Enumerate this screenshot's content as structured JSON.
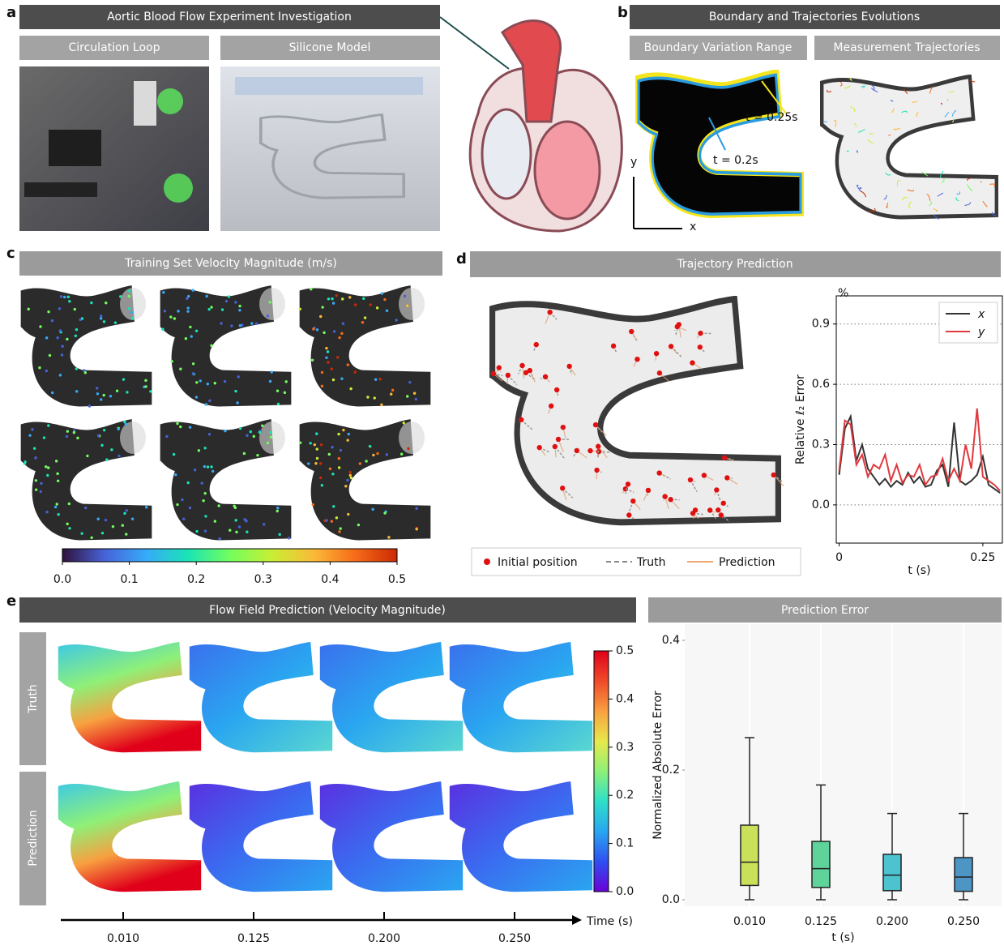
{
  "panels": {
    "a": {
      "label": "a",
      "title": "Aortic Blood Flow Experiment Investigation",
      "subtitles": [
        "Circulation Loop",
        "Silicone Model"
      ]
    },
    "b": {
      "label": "b",
      "title": "Boundary and Trajectories Evolutions",
      "subtitles": [
        "Boundary Variation Range",
        "Measurement Trajectories"
      ],
      "annotations": [
        "t = 0.25s",
        "t = 0.2s"
      ],
      "axis_labels": [
        "y",
        "x"
      ]
    },
    "c": {
      "label": "c",
      "title": "Training Set Velocity Magnitude (m/s)"
    },
    "d": {
      "label": "d",
      "title": "Trajectory Prediction",
      "legend": [
        "Initial position",
        "Truth",
        "Prediction"
      ]
    },
    "e": {
      "label": "e",
      "title": "Flow Field Prediction (Velocity Magnitude)",
      "rows": [
        "Truth",
        "Prediction"
      ],
      "time_axis_label": "Time  (s)",
      "times": [
        "0.010",
        "0.125",
        "0.200",
        "0.250"
      ],
      "error_title": "Prediction Error"
    }
  },
  "chart_data": [
    {
      "type": "line",
      "y_unit": "%",
      "ylabel": "Relative ℓ₂ Error",
      "xlabel": "t (s)",
      "x": [
        0,
        0.01,
        0.02,
        0.03,
        0.04,
        0.05,
        0.06,
        0.07,
        0.08,
        0.09,
        0.1,
        0.11,
        0.12,
        0.13,
        0.14,
        0.15,
        0.16,
        0.17,
        0.18,
        0.19,
        0.2,
        0.21,
        0.22,
        0.23,
        0.24,
        0.25,
        0.26,
        0.27,
        0.28
      ],
      "series": [
        {
          "name": "x",
          "color": "#333333",
          "values": [
            0.15,
            0.38,
            0.44,
            0.22,
            0.3,
            0.18,
            0.14,
            0.1,
            0.13,
            0.09,
            0.12,
            0.1,
            0.16,
            0.11,
            0.14,
            0.09,
            0.1,
            0.17,
            0.2,
            0.09,
            0.41,
            0.12,
            0.1,
            0.12,
            0.15,
            0.24,
            0.1,
            0.08,
            0.06
          ]
        },
        {
          "name": "y",
          "color": "#e0393e",
          "values": [
            0.17,
            0.42,
            0.4,
            0.2,
            0.25,
            0.14,
            0.2,
            0.18,
            0.25,
            0.12,
            0.2,
            0.11,
            0.15,
            0.14,
            0.2,
            0.1,
            0.14,
            0.15,
            0.23,
            0.12,
            0.18,
            0.12,
            0.3,
            0.18,
            0.48,
            0.14,
            0.12,
            0.1,
            0.07
          ]
        }
      ],
      "xlim": [
        -0.005,
        0.284
      ],
      "xticks": [
        0,
        0.25
      ],
      "ylim": [
        -0.19,
        1.04
      ],
      "yticks": [
        {
          "value": 0,
          "label": "0.0"
        },
        0.3,
        0.6,
        0.9
      ],
      "grid": true,
      "legend": "upper right"
    },
    {
      "type": "box",
      "ylabel": "Normalized Absolute Error",
      "xlabel": "t (s)",
      "categories": [
        "0.010",
        "0.125",
        "0.200",
        "0.250"
      ],
      "colors": [
        "#c8e05a",
        "#5ed39a",
        "#4cc3cf",
        "#4d95c4"
      ],
      "boxes": [
        {
          "low": 0,
          "q1": 0.022,
          "median": 0.058,
          "q3": 0.115,
          "high": 0.25
        },
        {
          "low": 0,
          "q1": 0.019,
          "median": 0.048,
          "q3": 0.09,
          "high": 0.177
        },
        {
          "low": 0,
          "q1": 0.014,
          "median": 0.038,
          "q3": 0.07,
          "high": 0.133
        },
        {
          "low": 0,
          "q1": 0.013,
          "median": 0.035,
          "q3": 0.065,
          "high": 0.133
        }
      ],
      "ylim": [
        -0.01,
        0.425
      ],
      "yticks": [
        {
          "value": 0,
          "label": "0.0"
        },
        0.2,
        0.4
      ]
    },
    {
      "type": "colorbar",
      "orientation": "horizontal",
      "colors": [
        "#30123b",
        "#4662d7",
        "#36aaf9",
        "#1ae4b6",
        "#72fe5e",
        "#c8ef34",
        "#faba39",
        "#f66b19",
        "#ca2a04"
      ],
      "xlim": [
        0,
        0.5
      ],
      "xticks": [
        {
          "value": 0,
          "label": "0.0"
        },
        0.1,
        0.2,
        0.3,
        0.4,
        0.5
      ]
    },
    {
      "type": "colorbar",
      "orientation": "vertical",
      "colors": [
        "#6a00d8",
        "#2f4ff0",
        "#2aa6f0",
        "#2de0c8",
        "#8ef078",
        "#e8e84a",
        "#f8a040",
        "#f04a2a",
        "#e0001a"
      ],
      "ylim": [
        0,
        0.5
      ],
      "yticks": [
        {
          "value": 0,
          "label": "0.0"
        },
        0.1,
        0.2,
        0.3,
        0.4,
        0.5
      ]
    }
  ]
}
